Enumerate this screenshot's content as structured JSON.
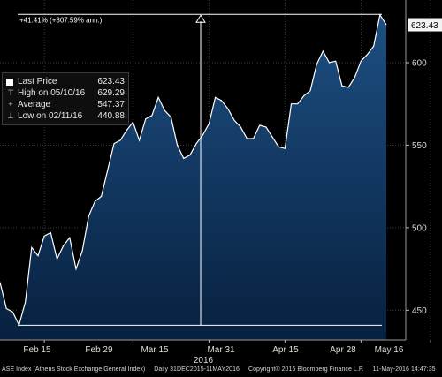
{
  "chart_data": {
    "type": "area",
    "title": "",
    "xlabel": "2016",
    "ylabel": "",
    "x_tick_labels": [
      "Feb 15",
      "Feb 29",
      "Mar 15",
      "Mar 31",
      "Apr 15",
      "Apr 28",
      "May 16"
    ],
    "y_ticks": [
      450,
      500,
      550,
      600
    ],
    "ylim": [
      432,
      638
    ],
    "last_value_label": "623.43",
    "series": [
      {
        "name": "ASE Index",
        "values": [
          467,
          451,
          449,
          441,
          455,
          488,
          483,
          495,
          497,
          481,
          489,
          494,
          475,
          486,
          507,
          516,
          519,
          535,
          551,
          553,
          559,
          564,
          553,
          566,
          568,
          579,
          571,
          567,
          550,
          542,
          544,
          551,
          556,
          563,
          579,
          577,
          572,
          565,
          561,
          554,
          554,
          562,
          561,
          555,
          549,
          548,
          575,
          575,
          580,
          583,
          599,
          607,
          600,
          601,
          586,
          585,
          591,
          601,
          605,
          610,
          629,
          623
        ]
      }
    ],
    "annotations": {
      "change_label": "+41.41% (+307.59% ann.)",
      "high_value": 629.29,
      "low_value": 440.88
    },
    "grid": true,
    "legend_placement": "top-left"
  },
  "legend": {
    "items": [
      {
        "label": "Last Price",
        "value": "623.43"
      },
      {
        "label": "High on 05/10/16",
        "value": "629.29"
      },
      {
        "label": "Average",
        "value": "547.37"
      },
      {
        "label": "Low on 02/11/16",
        "value": "440.88"
      }
    ]
  },
  "footer": {
    "index_name": "ASE Index (Athens Stock Exchange General Index)",
    "range": "Daily 31DEC2015-11MAY2016",
    "copyright": "Copyright® 2016 Bloomberg Finance L.P.",
    "timestamp": "11-May-2016 14:47:35"
  },
  "colors": {
    "background": "#000000",
    "area_top": "#1d4f82",
    "area_bottom": "#07203f",
    "line": "#ffffff",
    "grid": "#4a4a4a"
  }
}
